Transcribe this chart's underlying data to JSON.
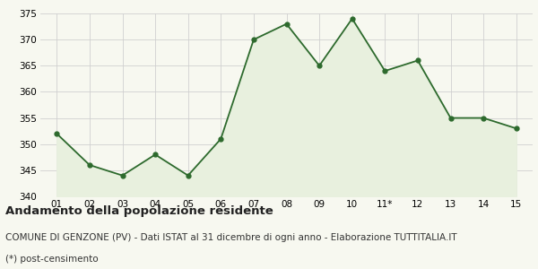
{
  "x_labels": [
    "01",
    "02",
    "03",
    "04",
    "05",
    "06",
    "07",
    "08",
    "09",
    "10",
    "11*",
    "12",
    "13",
    "14",
    "15"
  ],
  "y_values": [
    352,
    346,
    344,
    348,
    344,
    351,
    370,
    373,
    365,
    374,
    364,
    366,
    355,
    355,
    353
  ],
  "line_color": "#2d6a2d",
  "fill_color": "#e8f0de",
  "marker": "o",
  "marker_size": 3.5,
  "ylim": [
    340,
    375
  ],
  "yticks": [
    340,
    345,
    350,
    355,
    360,
    365,
    370,
    375
  ],
  "title": "Andamento della popolazione residente",
  "subtitle": "COMUNE DI GENZONE (PV) - Dati ISTAT al 31 dicembre di ogni anno - Elaborazione TUTTITALIA.IT",
  "footnote": "(*) post-censimento",
  "title_fontsize": 9.5,
  "subtitle_fontsize": 7.5,
  "footnote_fontsize": 7.5,
  "tick_fontsize": 7.5,
  "bg_color": "#f7f8f0",
  "grid_color": "#d0d0d0",
  "line_width": 1.3
}
